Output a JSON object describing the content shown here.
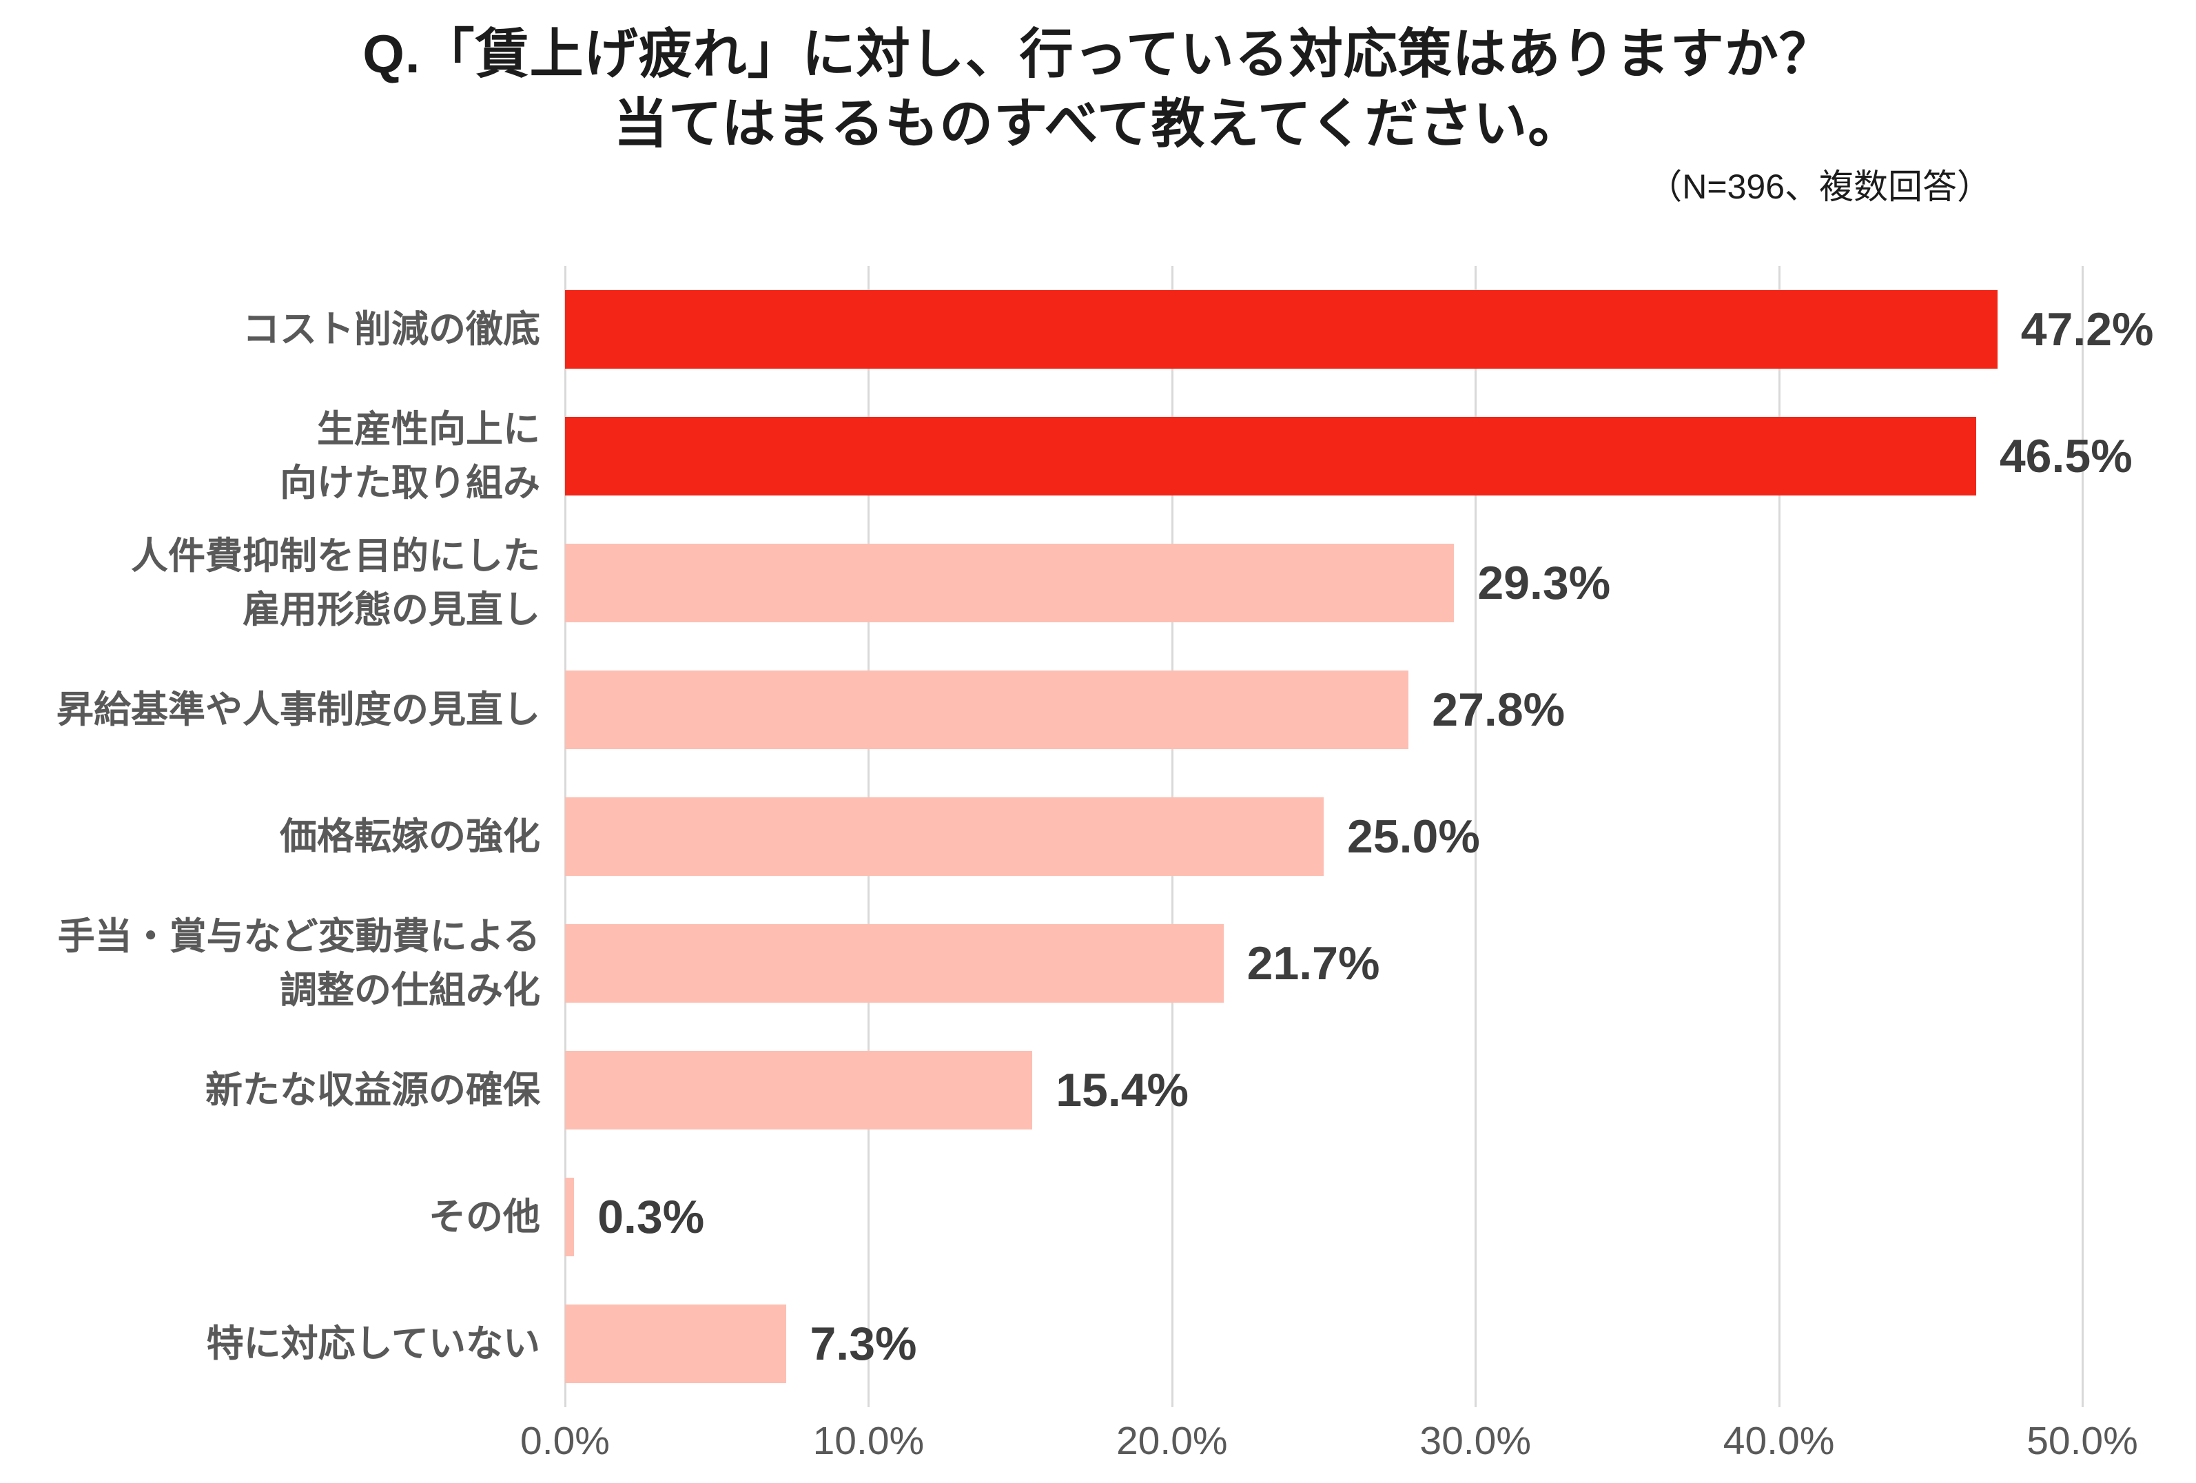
{
  "title": {
    "line1": "Q.「賃上げ疲れ」に対し、行っている対応策はありますか？",
    "line2": "当てはまるものすべて教えてください。"
  },
  "note": "（N=396、複数回答）",
  "colors": {
    "highlight_bar": "#f32517",
    "normal_bar": "#ffbeb2",
    "gridline": "#d9d9d9",
    "category_label": "#595959",
    "value_label": "#3d3d3d",
    "axis_label": "#595959",
    "title_text": "#1c1c1c"
  },
  "chart_data": {
    "type": "bar",
    "orientation": "horizontal",
    "title": "Q.「賃上げ疲れ」に対し、行っている対応策はありますか？ 当てはまるものすべて教えてください。",
    "note": "（N=396、複数回答）",
    "xlabel": "",
    "ylabel": "",
    "xlim": [
      0,
      50
    ],
    "x_ticks": [
      "0.0%",
      "10.0%",
      "20.0%",
      "30.0%",
      "40.0%",
      "50.0%"
    ],
    "grid": true,
    "legend": "none",
    "categories": [
      "コスト削減の徹底",
      "生産性向上に向けた取り組み",
      "人件費抑制を目的にした雇用形態の見直し",
      "昇給基準や人事制度の見直し",
      "価格転嫁の強化",
      "手当・賞与など変動費による調整の仕組み化",
      "新たな収益源の確保",
      "その他",
      "特に対応していない"
    ],
    "values": [
      47.2,
      46.5,
      29.3,
      27.8,
      25.0,
      21.7,
      15.4,
      0.3,
      7.3
    ],
    "items": [
      {
        "label_lines": [
          "コスト削減の徹底"
        ],
        "value": 47.2,
        "value_label": "47.2%",
        "highlight": true
      },
      {
        "label_lines": [
          "生産性向上に",
          "向けた取り組み"
        ],
        "value": 46.5,
        "value_label": "46.5%",
        "highlight": true
      },
      {
        "label_lines": [
          "人件費抑制を目的にした",
          "雇用形態の見直し"
        ],
        "value": 29.3,
        "value_label": "29.3%",
        "highlight": false
      },
      {
        "label_lines": [
          "昇給基準や人事制度の見直し"
        ],
        "value": 27.8,
        "value_label": "27.8%",
        "highlight": false
      },
      {
        "label_lines": [
          "価格転嫁の強化"
        ],
        "value": 25.0,
        "value_label": "25.0%",
        "highlight": false
      },
      {
        "label_lines": [
          "手当・賞与など変動費による",
          "調整の仕組み化"
        ],
        "value": 21.7,
        "value_label": "21.7%",
        "highlight": false
      },
      {
        "label_lines": [
          "新たな収益源の確保"
        ],
        "value": 15.4,
        "value_label": "15.4%",
        "highlight": false
      },
      {
        "label_lines": [
          "その他"
        ],
        "value": 0.3,
        "value_label": "0.3%",
        "highlight": false
      },
      {
        "label_lines": [
          "特に対応していない"
        ],
        "value": 7.3,
        "value_label": "7.3%",
        "highlight": false
      }
    ]
  }
}
